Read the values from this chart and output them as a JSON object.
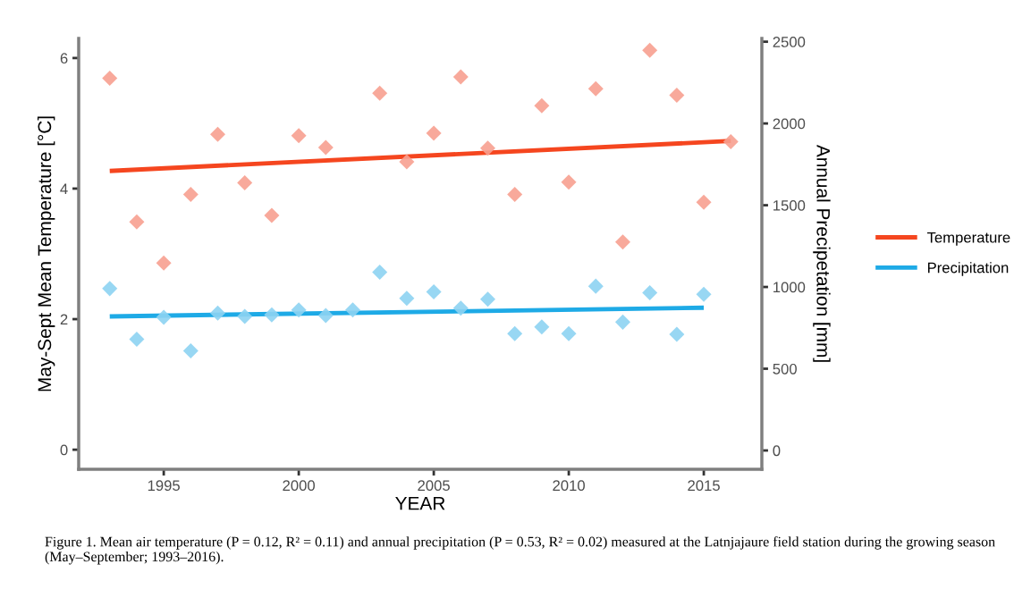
{
  "chart_data": {
    "type": "scatter",
    "xlabel": "YEAR",
    "ylabel": "May-Sept Mean Temperature [°C]",
    "y2label": "Annual Precipetation [mm]",
    "xlim": [
      1991.85,
      2017.15
    ],
    "xticks": [
      1995,
      2000,
      2005,
      2010,
      2015
    ],
    "ylim": [
      -0.3,
      6.3
    ],
    "yticks": [
      0,
      2,
      4,
      6
    ],
    "y2lim": [
      -115,
      2520
    ],
    "y2ticks": [
      0,
      500,
      1000,
      1500,
      2000,
      2500
    ],
    "grid": false,
    "legend": "right",
    "marker": "diamond",
    "series": [
      {
        "axis": "y",
        "color": "#f7a090",
        "x": [
          1993,
          1994,
          1995,
          1996,
          1997,
          1998,
          1999,
          2000,
          2001,
          2003,
          2004,
          2005,
          2006,
          2007,
          2008,
          2009,
          2010,
          2011,
          2012,
          2013,
          2014,
          2015,
          2016
        ],
        "values": [
          5.69,
          3.49,
          2.86,
          3.91,
          4.83,
          4.09,
          3.59,
          4.81,
          4.63,
          5.46,
          4.41,
          4.85,
          5.71,
          4.62,
          3.91,
          5.27,
          4.1,
          5.53,
          3.18,
          6.12,
          5.43,
          3.79,
          4.72
        ]
      },
      {
        "axis": "y2",
        "color": "#8dd3f2",
        "x": [
          1993,
          1994,
          1995,
          1996,
          1997,
          1998,
          1999,
          2000,
          2001,
          2002,
          2003,
          2004,
          2005,
          2006,
          2007,
          2008,
          2009,
          2010,
          2011,
          2012,
          2013,
          2014,
          2015
        ],
        "values": [
          990,
          680,
          815,
          610,
          840,
          820,
          830,
          860,
          825,
          860,
          1090,
          930,
          970,
          870,
          925,
          715,
          755,
          715,
          1005,
          785,
          965,
          710,
          955
        ]
      },
      {
        "type": "line",
        "axis": "y",
        "name": "Temperature",
        "color": "#f5461f",
        "marker": "none",
        "x": [
          1993,
          2016
        ],
        "values": [
          4.27,
          4.73
        ]
      },
      {
        "type": "line",
        "axis": "y2",
        "name": "Precipitation",
        "color": "#1eaae6",
        "marker": "none",
        "x": [
          1993,
          2015
        ],
        "values": [
          820,
          873
        ]
      }
    ],
    "annotations": [
      "Figure 1. Mean air temperature (P = 0.12, R² = 0.11) and annual precipitation (P = 0.53, R² = 0.02) measured at the Latnjajaure field station during the growing season (May–September; 1993–2016)."
    ]
  }
}
